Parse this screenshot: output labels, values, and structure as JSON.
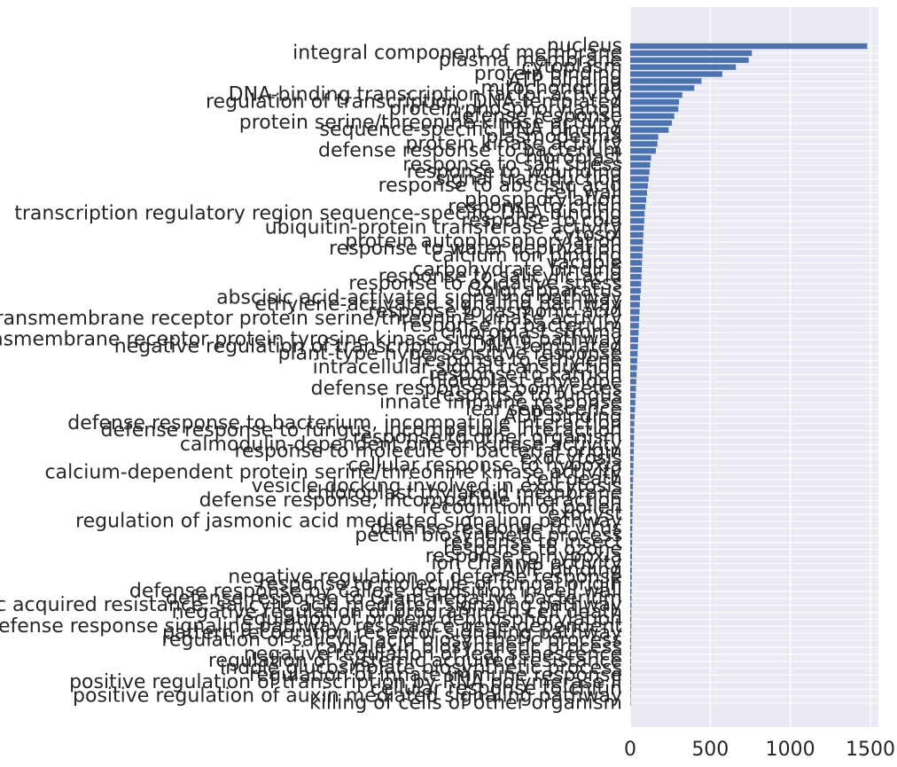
{
  "chart_data": {
    "type": "bar",
    "orientation": "horizontal",
    "title": "",
    "xlabel": "",
    "ylabel": "",
    "xlim": [
      0,
      1550
    ],
    "xticks": [
      0,
      500,
      1000,
      1500
    ],
    "xtick_labels": [
      "0",
      "500",
      "1000",
      "1500"
    ],
    "grid": true,
    "colors": {
      "bar": "#4c72b0",
      "background": "#eaeaf2",
      "grid": "#ffffff",
      "text": "#262626"
    },
    "categories": [
      "nucleus",
      "integral component of membrane",
      "plasma membrane",
      "cytoplasm",
      "protein binding",
      "ATP binding",
      "mitochondrion",
      "DNA-binding transcription factor activity",
      "regulation of transcription, DNA-templated",
      "protein phosphorylation",
      "defense response",
      "protein serine/threonine kinase activity",
      "sequence-specific DNA binding",
      "plasmodesma",
      "protein kinase activity",
      "defense response to bacterium",
      "chloroplast",
      "response to salt stress",
      "response to wounding",
      "signal transduction",
      "response to abscisic acid",
      "cell wall",
      "phosphorylation",
      "response to chitin",
      "transcription regulatory region sequence-specific DNA binding",
      "response to cold",
      "ubiquitin-protein transferase activity",
      "cytosol",
      "protein autophosphorylation",
      "response to water deprivation",
      "calcium ion binding",
      "vacuole",
      "carbohydrate binding",
      "response to salicylic acid",
      "response to oxidative stress",
      "Golgi apparatus",
      "abscisic acid-activated signaling pathway",
      "ethylene-activated signaling pathway",
      "response to jasmonic acid",
      "transmembrane receptor protein serine/threonine kinase activity",
      "response to bacterium",
      "chloroplast stroma",
      "transmembrane receptor protein tyrosine kinase signaling pathway",
      "negative regulation of transcription, DNA-templated",
      "plant-type hypersensitive response",
      "response to ethylene",
      "intracellular signal transduction",
      "response to karrikin",
      "chloroplast envelope",
      "defense response to oomycetes",
      "response to fungus",
      "innate immune response",
      "leaf senescence",
      "ADP binding",
      "defense response to bacterium, incompatible interaction",
      "defense response to fungus, incompatible interaction",
      "response to other organism",
      "calmodulin-dependent protein kinase activity",
      "response to molecule of bacterial origin",
      "exocytosis",
      "cellular response to hypoxia",
      "calcium-dependent protein serine/threonine kinase activity",
      "cell death",
      "vesicle docking involved in exocytosis",
      "chloroplast thylakoid membrane",
      "defense response, incompatible interaction",
      "recognition of pollen",
      "exocyst",
      "regulation of jasmonic acid mediated signaling pathway",
      "defense response to virus",
      "pectin biosynthetic process",
      "response to insect",
      "response to ozone",
      "response to hypoxia",
      "ion channel activity",
      "cAMP binding",
      "negative regulation of defense response",
      "response to molecule of fungal origin",
      "defense response by callose deposition in cell wall",
      "defense response to Gram-negative bacterium",
      "systemic acquired resistance, salicylic acid mediated signaling pathway",
      "negative regulation of programmed cell death",
      "regulation of protein dephosphorylation",
      "defense response signaling pathway, resistance gene-dependent",
      "pattern recognition receptor signaling pathway",
      "regulation of salicylic acid biosynthetic process",
      "camalexin biosynthetic process",
      "negative regulation of leaf senescence",
      "regulation of systemic acquired resistance",
      "indole glucosinolate biosynthetic process",
      "regulation of innate immune response",
      "positive regulation of transcription by RNA polymerase II",
      "cellular response to chitin",
      "positive regulation of auxin mediated signaling pathway",
      "killing of cells of other organism"
    ],
    "values": [
      1480,
      760,
      740,
      660,
      575,
      445,
      400,
      325,
      305,
      300,
      275,
      260,
      240,
      175,
      170,
      160,
      130,
      125,
      120,
      115,
      110,
      105,
      100,
      95,
      90,
      88,
      85,
      82,
      80,
      78,
      76,
      74,
      72,
      70,
      68,
      66,
      62,
      60,
      58,
      56,
      54,
      52,
      50,
      48,
      46,
      44,
      42,
      40,
      38,
      36,
      34,
      32,
      30,
      28,
      26,
      25,
      24,
      23,
      22,
      21,
      20,
      19,
      18,
      17,
      16,
      15,
      14,
      14,
      13,
      13,
      12,
      12,
      11,
      11,
      10,
      10,
      9,
      9,
      8,
      8,
      8,
      7,
      7,
      7,
      6,
      6,
      6,
      5,
      5,
      5,
      4,
      4,
      4,
      3,
      3
    ]
  }
}
